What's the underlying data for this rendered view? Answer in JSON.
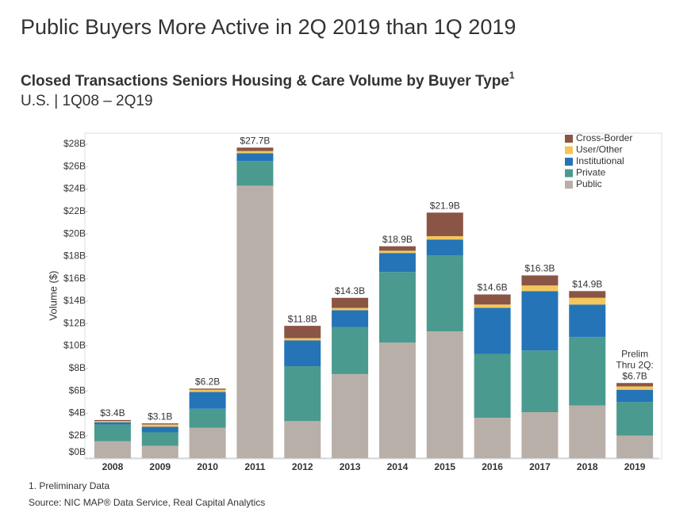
{
  "chart_data": {
    "type": "stacked_bar",
    "title": "Public Buyers More Active in 2Q 2019 than 1Q 2019",
    "subtitle": "Closed Transactions Seniors Housing & Care Volume by Buyer Type",
    "subtitle_superscript": "1",
    "subtitle2": "U.S. | 1Q08 – 2Q19",
    "y_label": "Volume ($)",
    "categories": [
      "2008",
      "2009",
      "2010",
      "2011",
      "2012",
      "2013",
      "2014",
      "2015",
      "2016",
      "2017",
      "2018",
      "2019"
    ],
    "series": [
      {
        "name": "Public",
        "color": "#b9afa9",
        "values": [
          1.5,
          1.1,
          2.7,
          24.3,
          3.3,
          7.5,
          10.3,
          11.3,
          3.6,
          4.1,
          4.7,
          2.0
        ]
      },
      {
        "name": "Private",
        "color": "#4a9a8f",
        "values": [
          1.5,
          1.2,
          1.7,
          2.2,
          4.9,
          4.2,
          6.3,
          6.8,
          5.7,
          5.5,
          6.1,
          3.0
        ]
      },
      {
        "name": "Institutional",
        "color": "#2474b7",
        "values": [
          0.2,
          0.5,
          1.5,
          0.7,
          2.3,
          1.5,
          1.7,
          1.4,
          4.1,
          5.3,
          2.9,
          1.1
        ]
      },
      {
        "name": "User/Other",
        "color": "#f2c75c",
        "values": [
          0.1,
          0.2,
          0.2,
          0.2,
          0.2,
          0.2,
          0.2,
          0.3,
          0.3,
          0.5,
          0.6,
          0.3
        ]
      },
      {
        "name": "Cross-Border",
        "color": "#8b5546",
        "values": [
          0.1,
          0.1,
          0.1,
          0.3,
          1.1,
          0.9,
          0.4,
          2.1,
          0.9,
          0.9,
          0.6,
          0.3
        ]
      }
    ],
    "totals": [
      3.4,
      3.1,
      6.2,
      27.7,
      11.8,
      14.3,
      18.9,
      21.9,
      14.6,
      16.3,
      14.9,
      6.7
    ],
    "total_labels": [
      [
        "$3.4B"
      ],
      [
        "$3.1B"
      ],
      [
        "$6.2B"
      ],
      [
        "$27.7B"
      ],
      [
        "$11.8B"
      ],
      [
        "$14.3B"
      ],
      [
        "$18.9B"
      ],
      [
        "$21.9B"
      ],
      [
        "$14.6B"
      ],
      [
        "$16.3B"
      ],
      [
        "$14.9B"
      ],
      [
        "Prelim",
        "Thru 2Q:",
        "$6.7B"
      ]
    ],
    "ylim": [
      0,
      28
    ],
    "yticks": [
      {
        "value": 0,
        "label": "$0B"
      },
      {
        "value": 2,
        "label": "$2B"
      },
      {
        "value": 4,
        "label": "$4B"
      },
      {
        "value": 6,
        "label": "$6B"
      },
      {
        "value": 8,
        "label": "$8B"
      },
      {
        "value": 10,
        "label": "$10B"
      },
      {
        "value": 12,
        "label": "$12B"
      },
      {
        "value": 14,
        "label": "$14B"
      },
      {
        "value": 16,
        "label": "$16B"
      },
      {
        "value": 18,
        "label": "$18B"
      },
      {
        "value": 20,
        "label": "$20B"
      },
      {
        "value": 22,
        "label": "$22B"
      },
      {
        "value": 24,
        "label": "$24B"
      },
      {
        "value": 26,
        "label": "$26B"
      },
      {
        "value": 28,
        "label": "$28B"
      }
    ],
    "grid": false,
    "legend": "top-right",
    "footnote": "1. Preliminary Data",
    "source": "Source: NIC MAP® Data Service, Real Capital Analytics"
  }
}
